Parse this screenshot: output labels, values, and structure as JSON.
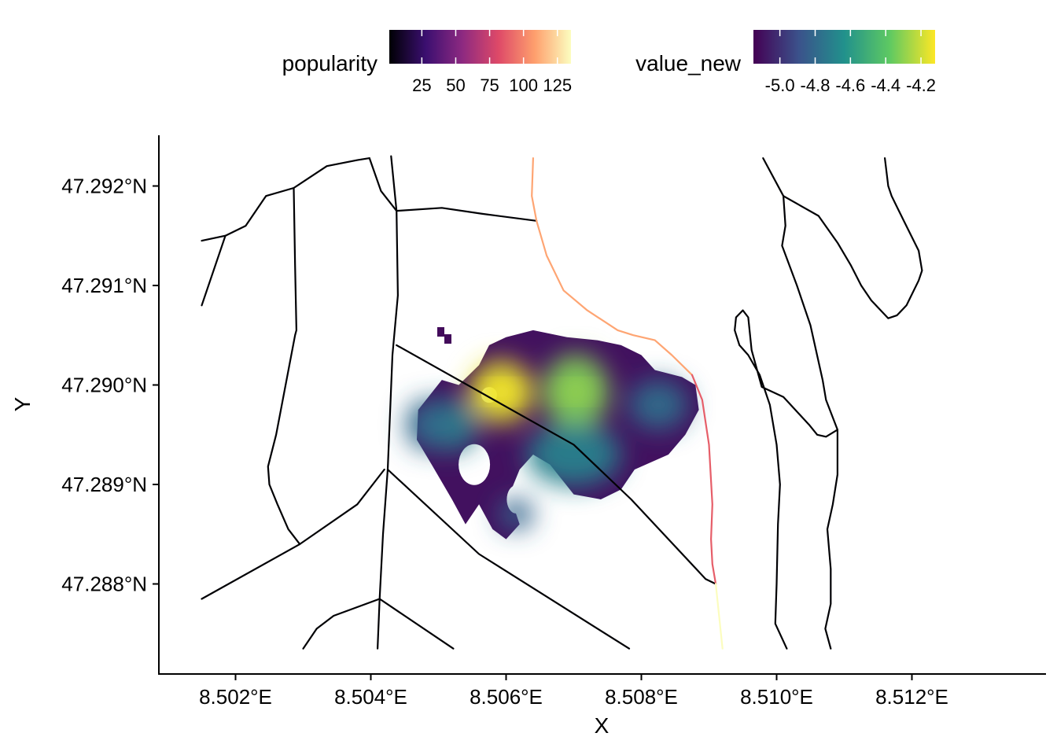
{
  "chart_data": {
    "type": "heatmap",
    "xlabel": "X",
    "ylabel": "Y",
    "xlim": [
      8.5009,
      8.5138
    ],
    "ylim": [
      47.2872,
      47.2925
    ],
    "x_ticks": [
      {
        "value": 8.502,
        "label": "8.502°E"
      },
      {
        "value": 8.504,
        "label": "8.504°E"
      },
      {
        "value": 8.506,
        "label": "8.506°E"
      },
      {
        "value": 8.508,
        "label": "8.508°E"
      },
      {
        "value": 8.51,
        "label": "8.510°E"
      },
      {
        "value": 8.512,
        "label": "8.512°E"
      }
    ],
    "y_ticks": [
      {
        "value": 47.288,
        "label": "47.288°N"
      },
      {
        "value": 47.289,
        "label": "47.289°N"
      },
      {
        "value": 47.29,
        "label": "47.290°N"
      },
      {
        "value": 47.291,
        "label": "47.291°N"
      },
      {
        "value": 47.292,
        "label": "47.292°N"
      }
    ],
    "grid": false,
    "legends": [
      {
        "title": "popularity",
        "palette": "spectral-magma",
        "range": [
          1,
          135
        ],
        "ticks": [
          "25",
          "50",
          "75",
          "100",
          "125"
        ],
        "tick_values": [
          25,
          50,
          75,
          100,
          125
        ],
        "colors": [
          "#000004",
          "#3b0f70",
          "#8c2981",
          "#de4968",
          "#fe9f6d",
          "#fcfdbf"
        ]
      },
      {
        "title": "value_new",
        "palette": "viridis",
        "range": [
          -5.15,
          -4.12
        ],
        "ticks": [
          "-5.0",
          "-4.8",
          "-4.6",
          "-4.4",
          "-4.2"
        ],
        "tick_values": [
          -5.0,
          -4.8,
          -4.6,
          -4.4,
          -4.2
        ],
        "colors": [
          "#440154",
          "#3b528b",
          "#21918c",
          "#5ec962",
          "#fde725"
        ]
      }
    ],
    "heat_peaks": [
      {
        "x": 8.50593,
        "y": 47.28993,
        "value": -4.15
      },
      {
        "x": 8.50703,
        "y": 47.28993,
        "value": -4.32
      },
      {
        "x": 8.50518,
        "y": 47.2896,
        "value": -4.72
      },
      {
        "x": 8.50825,
        "y": 47.2898,
        "value": -4.78
      },
      {
        "x": 8.5048,
        "y": 47.2896,
        "value": -4.8
      },
      {
        "x": 8.50615,
        "y": 47.2887,
        "value": -4.82
      },
      {
        "x": 8.507,
        "y": 47.2893,
        "value": -4.7
      }
    ],
    "roads": [
      {
        "popularity": 1,
        "points": [
          [
            8.5015,
            47.29145
          ],
          [
            8.50185,
            47.2915
          ],
          [
            8.50215,
            47.2916
          ],
          [
            8.50245,
            47.2919
          ],
          [
            8.50286,
            47.29198
          ],
          [
            8.50335,
            47.2922
          ],
          [
            8.5038,
            47.29226
          ],
          [
            8.50398,
            47.29228
          ]
        ]
      },
      {
        "popularity": 1,
        "points": [
          [
            8.5015,
            47.2908
          ],
          [
            8.50185,
            47.2915
          ]
        ]
      },
      {
        "popularity": 1,
        "points": [
          [
            8.50286,
            47.29198
          ],
          [
            8.50288,
            47.2912
          ],
          [
            8.5029,
            47.29055
          ],
          [
            8.50288,
            47.2905
          ],
          [
            8.5026,
            47.2895
          ],
          [
            8.50248,
            47.28918
          ],
          [
            8.5025,
            47.289
          ],
          [
            8.50262,
            47.2888
          ],
          [
            8.50278,
            47.28855
          ],
          [
            8.50295,
            47.2884
          ]
        ]
      },
      {
        "popularity": 1,
        "points": [
          [
            8.5015,
            47.28785
          ],
          [
            8.50295,
            47.2884
          ],
          [
            8.5038,
            47.2888
          ],
          [
            8.5042,
            47.28915
          ]
        ]
      },
      {
        "popularity": 1,
        "points": [
          [
            8.50398,
            47.29228
          ],
          [
            8.50415,
            47.29195
          ],
          [
            8.50438,
            47.29175
          ],
          [
            8.50505,
            47.29178
          ],
          [
            8.50565,
            47.29172
          ],
          [
            8.50645,
            47.29165
          ]
        ]
      },
      {
        "popularity": 1,
        "points": [
          [
            8.5043,
            47.2923
          ],
          [
            8.50438,
            47.29175
          ],
          [
            8.5044,
            47.2909
          ],
          [
            8.50432,
            47.2903
          ],
          [
            8.50425,
            47.28915
          ],
          [
            8.50418,
            47.2885
          ],
          [
            8.50413,
            47.28785
          ],
          [
            8.5041,
            47.28735
          ]
        ]
      },
      {
        "popularity": 1,
        "points": [
          [
            8.503,
            47.28735
          ],
          [
            8.5032,
            47.28755
          ],
          [
            8.50345,
            47.28768
          ],
          [
            8.50413,
            47.28785
          ],
          [
            8.50522,
            47.28735
          ]
        ]
      },
      {
        "popularity": 1,
        "points": [
          [
            8.50425,
            47.28915
          ],
          [
            8.5056,
            47.2883
          ],
          [
            8.50782,
            47.28735
          ]
        ]
      },
      {
        "popularity": 1,
        "points": [
          [
            8.50438,
            47.2904
          ],
          [
            8.507,
            47.2894
          ],
          [
            8.50785,
            47.28885
          ],
          [
            8.50895,
            47.28805
          ],
          [
            8.5091,
            47.288
          ]
        ]
      },
      {
        "popularity": 1,
        "points": [
          [
            8.5098,
            47.29228
          ],
          [
            8.5101,
            47.2919
          ],
          [
            8.51062,
            47.2917
          ],
          [
            8.5109,
            47.29143
          ],
          [
            8.5111,
            47.2912
          ],
          [
            8.51125,
            47.291
          ],
          [
            8.5114,
            47.29085
          ],
          [
            8.51165,
            47.29067
          ],
          [
            8.51178,
            47.2907
          ],
          [
            8.51192,
            47.2908
          ],
          [
            8.5121,
            47.29105
          ],
          [
            8.51215,
            47.29115
          ],
          [
            8.5121,
            47.29135
          ],
          [
            8.51188,
            47.29165
          ],
          [
            8.5117,
            47.2919
          ],
          [
            8.51165,
            47.292
          ],
          [
            8.5116,
            47.29228
          ]
        ]
      },
      {
        "popularity": 1,
        "points": [
          [
            8.5101,
            47.2919
          ],
          [
            8.51013,
            47.2916
          ],
          [
            8.51008,
            47.2914
          ],
          [
            8.5103,
            47.291
          ],
          [
            8.5105,
            47.2906
          ],
          [
            8.51068,
            47.29005
          ],
          [
            8.51073,
            47.28985
          ],
          [
            8.5109,
            47.28955
          ],
          [
            8.5109,
            47.2891
          ],
          [
            8.51083,
            47.2888
          ],
          [
            8.51075,
            47.28855
          ],
          [
            8.5108,
            47.28815
          ],
          [
            8.5108,
            47.2878
          ],
          [
            8.51072,
            47.28755
          ],
          [
            8.5108,
            47.28735
          ]
        ]
      },
      {
        "popularity": 1,
        "points": [
          [
            8.5109,
            47.28955
          ],
          [
            8.51073,
            47.28948
          ],
          [
            8.5106,
            47.2895
          ],
          [
            8.51048,
            47.2896
          ],
          [
            8.5101,
            47.28988
          ],
          [
            8.50978,
            47.28998
          ],
          [
            8.50963,
            47.29035
          ],
          [
            8.50958,
            47.29068
          ],
          [
            8.5095,
            47.29075
          ],
          [
            8.5094,
            47.29068
          ],
          [
            8.50938,
            47.29055
          ],
          [
            8.50945,
            47.2904
          ],
          [
            8.50958,
            47.2903
          ],
          [
            8.50975,
            47.2901
          ],
          [
            8.5099,
            47.2898
          ],
          [
            8.51,
            47.2894
          ],
          [
            8.51005,
            47.289
          ],
          [
            8.51002,
            47.2886
          ],
          [
            8.51,
            47.288
          ],
          [
            8.50998,
            47.2876
          ],
          [
            8.51015,
            47.28735
          ]
        ]
      },
      {
        "popularity": 110,
        "points": [
          [
            8.5064,
            47.29228
          ],
          [
            8.50638,
            47.2919
          ],
          [
            8.50645,
            47.29165
          ],
          [
            8.5066,
            47.2913
          ],
          [
            8.50685,
            47.29095
          ],
          [
            8.5072,
            47.29075
          ],
          [
            8.50765,
            47.29055
          ],
          [
            8.50788,
            47.2905
          ],
          [
            8.5082,
            47.29045
          ],
          [
            8.50845,
            47.2903
          ],
          [
            8.50875,
            47.2901
          ]
        ]
      },
      {
        "popularity": 88,
        "points": [
          [
            8.50875,
            47.2901
          ],
          [
            8.5089,
            47.28985
          ],
          [
            8.509,
            47.2894
          ],
          [
            8.50905,
            47.2888
          ],
          [
            8.50903,
            47.28845
          ],
          [
            8.50905,
            47.2882
          ],
          [
            8.5091,
            47.288
          ]
        ]
      },
      {
        "popularity": 135,
        "points": [
          [
            8.5091,
            47.288
          ],
          [
            8.5092,
            47.28735
          ]
        ]
      }
    ]
  }
}
